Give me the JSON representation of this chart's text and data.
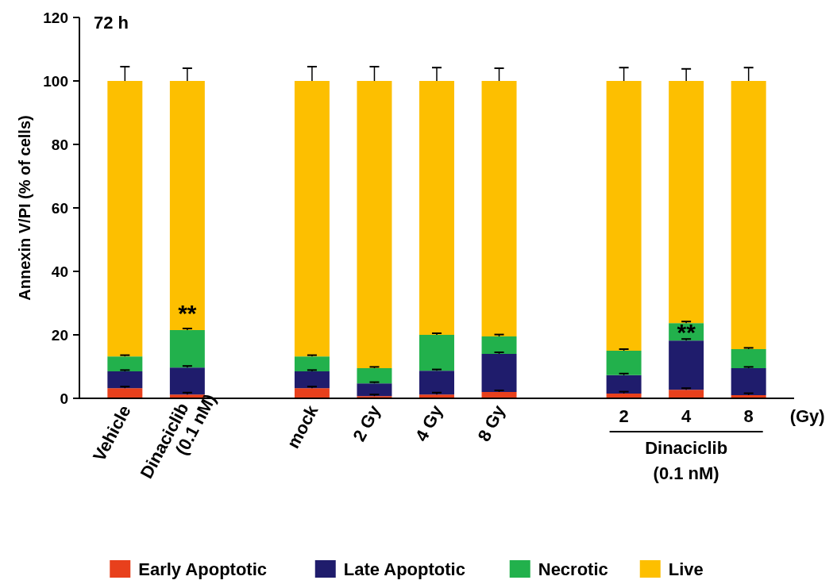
{
  "chart_data": {
    "type": "bar",
    "stacked": true,
    "title": "72 h",
    "ylabel": "Annexin V/PI (% of cells)",
    "categories": [
      "Vehicle",
      "Dinaciclib\n(0.1 nM)",
      null,
      "mock",
      "2 Gy",
      "4 Gy",
      "8 Gy",
      null,
      "2",
      "4",
      "8"
    ],
    "series": [
      {
        "name": "Early Apoptotic",
        "color": "#e8401c",
        "values": [
          3.2,
          1.2,
          null,
          3.2,
          0.7,
          1.2,
          2,
          null,
          1.5,
          2.7,
          1
        ],
        "errors": [
          0.5,
          0.6,
          null,
          0.5,
          0.5,
          0.6,
          0.5,
          null,
          0.6,
          0.5,
          0.6
        ]
      },
      {
        "name": "Late Apoptotic",
        "color": "#1f1c6c",
        "values": [
          5.3,
          8.5,
          null,
          5.3,
          4,
          7.5,
          12,
          null,
          5.8,
          15.5,
          8.5
        ],
        "errors": [
          0.4,
          0.5,
          null,
          0.4,
          0.4,
          0.4,
          0.5,
          null,
          0.5,
          0.5,
          0.4
        ]
      },
      {
        "name": "Necrotic",
        "color": "#22b14c",
        "values": [
          4.7,
          11.8,
          null,
          4.7,
          4.8,
          11.3,
          5.5,
          null,
          7.7,
          5.5,
          6
        ],
        "errors": [
          0.4,
          0.5,
          null,
          0.4,
          0.4,
          0.5,
          0.6,
          null,
          0.5,
          0.5,
          0.4
        ]
      },
      {
        "name": "Live",
        "color": "#fdbf00",
        "values": [
          86.8,
          78.5,
          null,
          86.8,
          90.5,
          80,
          80.5,
          null,
          85,
          76.3,
          84.5
        ],
        "errors": [
          4.5,
          4,
          null,
          4.5,
          4.5,
          4.2,
          4,
          null,
          4.2,
          3.8,
          4.2
        ]
      }
    ],
    "ylim": [
      0,
      120
    ],
    "yticks": [
      0,
      20,
      40,
      60,
      80,
      100,
      120
    ],
    "legend": "bottom",
    "annotations": [
      "**",
      "**",
      "(Gy)",
      "Dinaciclib\n(0.1 nM)"
    ]
  }
}
